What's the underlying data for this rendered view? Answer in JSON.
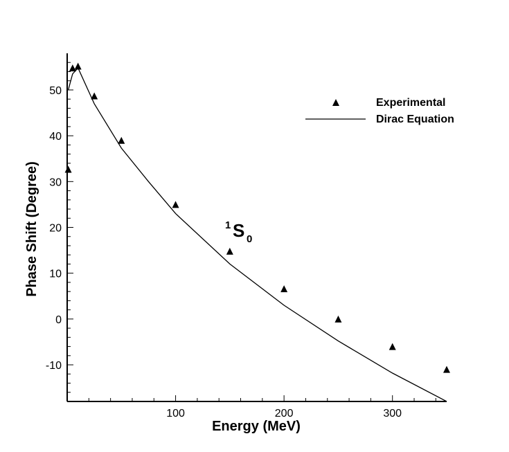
{
  "chart_data": {
    "type": "scatter+line",
    "title": "",
    "xlabel": "Energy (MeV)",
    "ylabel": "Phase Shift (Degree)",
    "xlim": [
      0,
      350
    ],
    "ylim": [
      -18,
      58
    ],
    "x_ticks": [
      100,
      200,
      300
    ],
    "y_ticks": [
      -10,
      0,
      10,
      20,
      30,
      40,
      50
    ],
    "annotation": {
      "sup": "1",
      "main": "S",
      "sub": "0"
    },
    "legend": {
      "position": "top-right",
      "entries": [
        {
          "label": "Experimental",
          "marker": "triangle"
        },
        {
          "label": "Dirac Equation",
          "marker": "line"
        }
      ]
    },
    "series": [
      {
        "name": "Experimental",
        "kind": "scatter",
        "x": [
          1,
          5,
          10,
          25,
          50,
          100,
          150,
          200,
          250,
          300,
          350
        ],
        "y": [
          32.7,
          54.8,
          55.2,
          48.7,
          39.0,
          25.0,
          14.8,
          6.6,
          0.0,
          -6.0,
          -11.0
        ]
      },
      {
        "name": "Dirac Equation",
        "kind": "line",
        "x": [
          1,
          5,
          10,
          25,
          50,
          75,
          100,
          150,
          200,
          250,
          300,
          350
        ],
        "y": [
          50.0,
          53.5,
          54.8,
          47.0,
          37.3,
          30.0,
          23.0,
          12.0,
          3.0,
          -4.8,
          -11.8,
          -18.0
        ]
      }
    ]
  }
}
